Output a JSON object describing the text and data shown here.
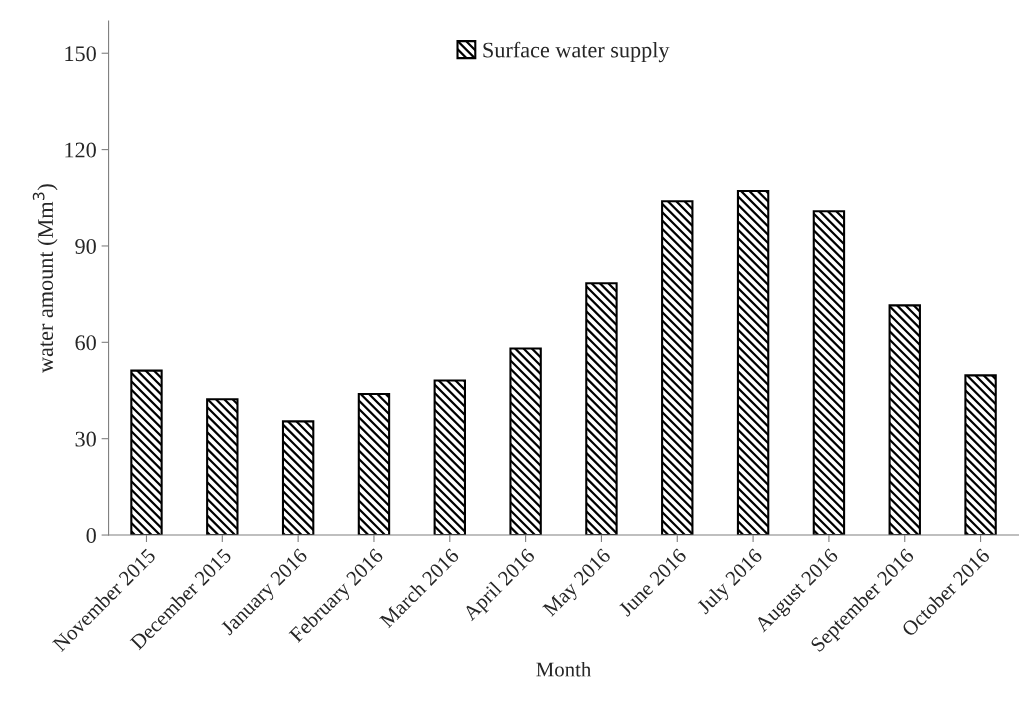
{
  "chart_data": {
    "type": "bar",
    "xlabel": "Month",
    "ylabel": "water amount (Mm$^{3}$)",
    "categories": [
      "November 2015",
      "December 2015",
      "January 2016",
      "February 2016",
      "March 2016",
      "April 2016",
      "May 2016",
      "June 2016",
      "July 2016",
      "August 2016",
      "September 2016",
      "October 2016"
    ],
    "series": [
      {
        "name": "Surface water supply",
        "color": "#000000",
        "values": [
          51.2,
          42.3,
          35.4,
          43.9,
          48.1,
          58.1,
          78.4,
          103.9,
          107.1,
          100.8,
          71.5,
          49.7
        ]
      }
    ],
    "ylim": [
      0,
      160
    ],
    "yticks": [
      0,
      30,
      60,
      90,
      120,
      150
    ],
    "grid": false,
    "legend": "top"
  }
}
